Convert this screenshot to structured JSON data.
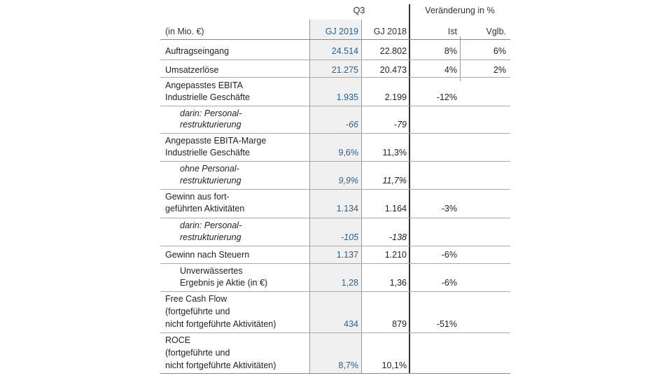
{
  "header": {
    "q3": "Q3",
    "change": "Veränderung in %",
    "unit": "(in Mio. €)",
    "gj2019": "GJ 2019",
    "gj2018": "GJ 2018",
    "ist": "Ist",
    "vglb": "Vglb."
  },
  "rows": [
    {
      "label1": "Auftragseingang",
      "label2": "",
      "label3": "",
      "gj2019": "24.514",
      "gj2018": "22.802",
      "ist": "8%",
      "vglb": "6%"
    },
    {
      "label1": "Umsatzerlöse",
      "label2": "",
      "label3": "",
      "gj2019": "21.275",
      "gj2018": "20.473",
      "ist": "4%",
      "vglb": "2%"
    },
    {
      "label1": "Angepasstes EBITA",
      "label2": "Industrielle Geschäfte",
      "label3": "",
      "gj2019": "1.935",
      "gj2018": "2.199",
      "ist": "-12%",
      "vglb": ""
    },
    {
      "label1": "darin: Personal-",
      "label2": "restrukturierung",
      "label3": "",
      "gj2019": "-66",
      "gj2018": "-79",
      "ist": "",
      "vglb": ""
    },
    {
      "label1": "Angepasste EBITA-Marge",
      "label2": "Industrielle Geschäfte",
      "label3": "",
      "gj2019": "9,6%",
      "gj2018": "11,3%",
      "ist": "",
      "vglb": ""
    },
    {
      "label1": "ohne Personal-",
      "label2": "restrukturierung",
      "label3": "",
      "gj2019": "9,9%",
      "gj2018": "11,7%",
      "ist": "",
      "vglb": ""
    },
    {
      "label1": "Gewinn aus fort-",
      "label2": "geführten Aktivitäten",
      "label3": "",
      "gj2019": "1.134",
      "gj2018": "1.164",
      "ist": "-3%",
      "vglb": ""
    },
    {
      "label1": "darin: Personal-",
      "label2": "restrukturierung",
      "label3": "",
      "gj2019": "-105",
      "gj2018": "-138",
      "ist": "",
      "vglb": ""
    },
    {
      "label1": "Gewinn nach Steuern",
      "label2": "",
      "label3": "",
      "gj2019": "1.137",
      "gj2018": "1.210",
      "ist": "-6%",
      "vglb": ""
    },
    {
      "label1": "Unverwässertes",
      "label2": "Ergebnis je Aktie (in €)",
      "label3": "",
      "gj2019": "1,28",
      "gj2018": "1,36",
      "ist": "-6%",
      "vglb": ""
    },
    {
      "label1": "Free Cash Flow",
      "label2": "(fortgeführte und",
      "label3": "nicht fortgeführte Aktivitäten)",
      "gj2019": "434",
      "gj2018": "879",
      "ist": "-51%",
      "vglb": ""
    },
    {
      "label1": "ROCE",
      "label2": "(fortgeführte und",
      "label3": "nicht fortgeführte Aktivitäten)",
      "gj2019": "8,7%",
      "gj2018": "10,1%",
      "ist": "",
      "vglb": ""
    }
  ]
}
